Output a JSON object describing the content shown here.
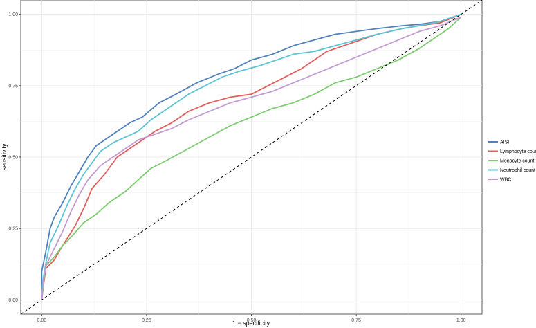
{
  "chart_data": {
    "type": "line",
    "title": "",
    "xlabel": "1 − specificity",
    "ylabel": "sensitivity",
    "xlim": [
      -0.05,
      1.05
    ],
    "ylim": [
      -0.05,
      1.05
    ],
    "x_ticks": [
      0.0,
      0.25,
      0.5,
      0.75,
      1.0
    ],
    "x_tick_labels": [
      "0.00",
      "0.25",
      "0.50",
      "0.75",
      "1.00"
    ],
    "y_ticks": [
      0.0,
      0.25,
      0.5,
      0.75,
      1.0
    ],
    "y_tick_labels": [
      "0.00",
      "0.25",
      "0.50",
      "0.75",
      "1.00"
    ],
    "grid": true,
    "legend_position": "right",
    "reference_line": {
      "style": "dashed",
      "color": "#000000",
      "from": [
        -0.05,
        -0.05
      ],
      "to": [
        1.05,
        1.05
      ]
    },
    "series": [
      {
        "name": "AISI",
        "color": "#4f81bd",
        "points": [
          [
            0,
            0
          ],
          [
            0.0,
            0.1
          ],
          [
            0.01,
            0.17
          ],
          [
            0.02,
            0.25
          ],
          [
            0.03,
            0.29
          ],
          [
            0.05,
            0.34
          ],
          [
            0.07,
            0.4
          ],
          [
            0.09,
            0.45
          ],
          [
            0.11,
            0.5
          ],
          [
            0.13,
            0.54
          ],
          [
            0.15,
            0.56
          ],
          [
            0.18,
            0.59
          ],
          [
            0.21,
            0.62
          ],
          [
            0.24,
            0.64
          ],
          [
            0.28,
            0.69
          ],
          [
            0.32,
            0.72
          ],
          [
            0.37,
            0.76
          ],
          [
            0.42,
            0.79
          ],
          [
            0.46,
            0.81
          ],
          [
            0.5,
            0.84
          ],
          [
            0.55,
            0.86
          ],
          [
            0.6,
            0.89
          ],
          [
            0.65,
            0.91
          ],
          [
            0.7,
            0.93
          ],
          [
            0.75,
            0.94
          ],
          [
            0.8,
            0.95
          ],
          [
            0.86,
            0.96
          ],
          [
            0.9,
            0.965
          ],
          [
            0.95,
            0.975
          ],
          [
            1.0,
            1.0
          ]
        ]
      },
      {
        "name": "Lymphocyte count",
        "color": "#e35d5b",
        "points": [
          [
            0,
            0
          ],
          [
            0.005,
            0.06
          ],
          [
            0.01,
            0.11
          ],
          [
            0.03,
            0.14
          ],
          [
            0.05,
            0.19
          ],
          [
            0.08,
            0.26
          ],
          [
            0.1,
            0.32
          ],
          [
            0.12,
            0.39
          ],
          [
            0.15,
            0.44
          ],
          [
            0.18,
            0.5
          ],
          [
            0.21,
            0.53
          ],
          [
            0.24,
            0.56
          ],
          [
            0.27,
            0.59
          ],
          [
            0.31,
            0.62
          ],
          [
            0.35,
            0.66
          ],
          [
            0.4,
            0.69
          ],
          [
            0.45,
            0.71
          ],
          [
            0.5,
            0.72
          ],
          [
            0.54,
            0.75
          ],
          [
            0.58,
            0.78
          ],
          [
            0.62,
            0.81
          ],
          [
            0.65,
            0.84
          ],
          [
            0.68,
            0.87
          ],
          [
            0.72,
            0.89
          ],
          [
            0.76,
            0.91
          ],
          [
            0.8,
            0.93
          ],
          [
            0.86,
            0.95
          ],
          [
            0.9,
            0.96
          ],
          [
            0.95,
            0.97
          ],
          [
            1.0,
            1.0
          ]
        ]
      },
      {
        "name": "Monocyte count",
        "color": "#7ccc6f",
        "points": [
          [
            0,
            0
          ],
          [
            0.005,
            0.07
          ],
          [
            0.01,
            0.12
          ],
          [
            0.03,
            0.15
          ],
          [
            0.05,
            0.19
          ],
          [
            0.07,
            0.22
          ],
          [
            0.1,
            0.27
          ],
          [
            0.13,
            0.3
          ],
          [
            0.16,
            0.34
          ],
          [
            0.2,
            0.38
          ],
          [
            0.23,
            0.42
          ],
          [
            0.26,
            0.46
          ],
          [
            0.3,
            0.49
          ],
          [
            0.35,
            0.53
          ],
          [
            0.4,
            0.57
          ],
          [
            0.45,
            0.61
          ],
          [
            0.5,
            0.64
          ],
          [
            0.55,
            0.67
          ],
          [
            0.6,
            0.69
          ],
          [
            0.65,
            0.72
          ],
          [
            0.7,
            0.76
          ],
          [
            0.75,
            0.78
          ],
          [
            0.8,
            0.81
          ],
          [
            0.85,
            0.84
          ],
          [
            0.9,
            0.88
          ],
          [
            0.94,
            0.92
          ],
          [
            0.97,
            0.95
          ],
          [
            1.0,
            0.99
          ]
        ]
      },
      {
        "name": "Neutrophil count",
        "color": "#5bc4d4",
        "points": [
          [
            0,
            0
          ],
          [
            0.003,
            0.07
          ],
          [
            0.01,
            0.13
          ],
          [
            0.02,
            0.2
          ],
          [
            0.04,
            0.26
          ],
          [
            0.06,
            0.33
          ],
          [
            0.08,
            0.39
          ],
          [
            0.1,
            0.44
          ],
          [
            0.12,
            0.48
          ],
          [
            0.14,
            0.52
          ],
          [
            0.17,
            0.55
          ],
          [
            0.2,
            0.57
          ],
          [
            0.23,
            0.59
          ],
          [
            0.26,
            0.63
          ],
          [
            0.29,
            0.66
          ],
          [
            0.32,
            0.69
          ],
          [
            0.35,
            0.72
          ],
          [
            0.39,
            0.75
          ],
          [
            0.43,
            0.78
          ],
          [
            0.47,
            0.8
          ],
          [
            0.52,
            0.82
          ],
          [
            0.56,
            0.84
          ],
          [
            0.6,
            0.86
          ],
          [
            0.65,
            0.87
          ],
          [
            0.7,
            0.89
          ],
          [
            0.75,
            0.91
          ],
          [
            0.8,
            0.93
          ],
          [
            0.86,
            0.95
          ],
          [
            0.9,
            0.96
          ],
          [
            0.95,
            0.975
          ],
          [
            1.0,
            1.0
          ]
        ]
      },
      {
        "name": "WBC",
        "color": "#c39bd3",
        "points": [
          [
            0,
            0
          ],
          [
            0.003,
            0.06
          ],
          [
            0.01,
            0.12
          ],
          [
            0.03,
            0.18
          ],
          [
            0.05,
            0.24
          ],
          [
            0.07,
            0.31
          ],
          [
            0.09,
            0.37
          ],
          [
            0.11,
            0.42
          ],
          [
            0.14,
            0.47
          ],
          [
            0.17,
            0.5
          ],
          [
            0.2,
            0.53
          ],
          [
            0.23,
            0.56
          ],
          [
            0.27,
            0.58
          ],
          [
            0.31,
            0.6
          ],
          [
            0.35,
            0.63
          ],
          [
            0.4,
            0.66
          ],
          [
            0.45,
            0.69
          ],
          [
            0.5,
            0.71
          ],
          [
            0.55,
            0.73
          ],
          [
            0.6,
            0.76
          ],
          [
            0.65,
            0.79
          ],
          [
            0.7,
            0.82
          ],
          [
            0.75,
            0.85
          ],
          [
            0.8,
            0.88
          ],
          [
            0.85,
            0.91
          ],
          [
            0.9,
            0.94
          ],
          [
            0.95,
            0.96
          ],
          [
            1.0,
            0.99
          ]
        ]
      }
    ]
  }
}
